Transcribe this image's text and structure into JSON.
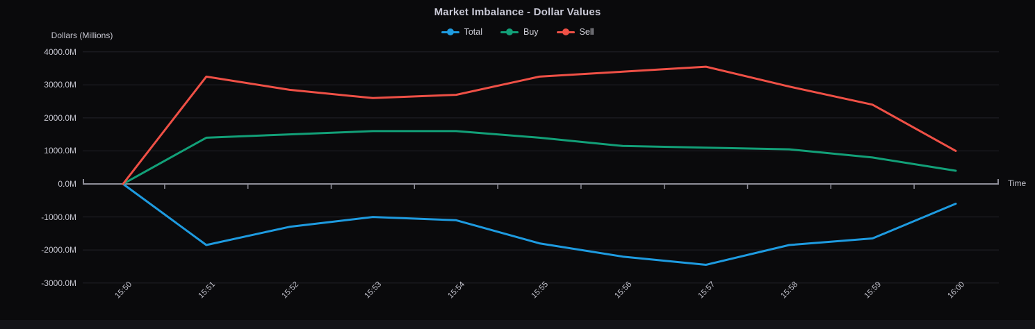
{
  "title": "Market Imbalance - Dollar Values",
  "legend": [
    {
      "label": "Total",
      "color": "#1e9be0"
    },
    {
      "label": "Buy",
      "color": "#12a078"
    },
    {
      "label": "Sell",
      "color": "#ef5046"
    }
  ],
  "colors": {
    "background": "#0a0a0c",
    "footer": "#141418",
    "axis": "#8e8e99",
    "grid": "#232328",
    "title_text": "#c9c9d6",
    "tick_text": "#c4c4ce"
  },
  "chart_data": {
    "type": "line",
    "title": "Market Imbalance - Dollar Values",
    "xlabel": "Time",
    "ylabel": "Dollars (Millions)",
    "categories": [
      "15:50",
      "15:51",
      "15:52",
      "15:53",
      "15:54",
      "15:55",
      "15:56",
      "15:57",
      "15:58",
      "15:59",
      "16:00"
    ],
    "series": [
      {
        "name": "Total",
        "color": "#1e9be0",
        "values": [
          0,
          -1850,
          -1300,
          -1000,
          -1100,
          -1800,
          -2200,
          -2450,
          -1850,
          -1650,
          -600
        ]
      },
      {
        "name": "Buy",
        "color": "#12a078",
        "values": [
          0,
          1400,
          1500,
          1600,
          1600,
          1400,
          1150,
          1100,
          1050,
          800,
          400
        ]
      },
      {
        "name": "Sell",
        "color": "#ef5046",
        "values": [
          0,
          3250,
          2850,
          2600,
          2700,
          3250,
          3400,
          3550,
          2950,
          2400,
          1000
        ]
      }
    ],
    "yticks": [
      {
        "label": "4000.0M",
        "value": 4000
      },
      {
        "label": "3000.0M",
        "value": 3000
      },
      {
        "label": "2000.0M",
        "value": 2000
      },
      {
        "label": "1000.0M",
        "value": 1000
      },
      {
        "label": "0.0M",
        "value": 0
      },
      {
        "label": "-1000.0M",
        "value": -1000
      },
      {
        "label": "-2000.0M",
        "value": -2000
      },
      {
        "label": "-3000.0M",
        "value": -3000
      }
    ],
    "ylim": [
      -3000,
      4000
    ],
    "grid": "horizontal",
    "legend_position": "top"
  }
}
